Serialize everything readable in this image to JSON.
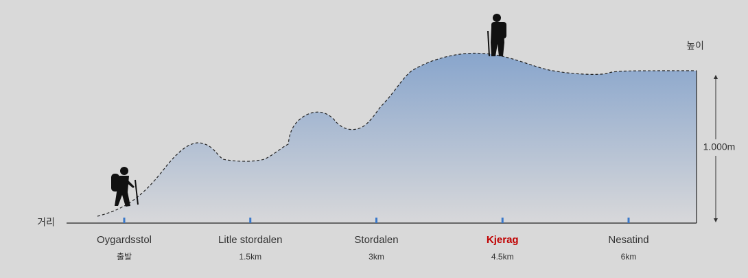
{
  "x_axis_label": "거리",
  "y_axis_label": "높이",
  "height_label": "1.000m",
  "waypoints": [
    {
      "name": "Oygardsstol",
      "distance": "출발"
    },
    {
      "name": "Litle stordalen",
      "distance": "1.5km"
    },
    {
      "name": "Stordalen",
      "distance": "3km"
    },
    {
      "name": "Kjerag",
      "distance": "4.5km",
      "highlight": true
    },
    {
      "name": "Nesatind",
      "distance": "6km"
    }
  ]
}
